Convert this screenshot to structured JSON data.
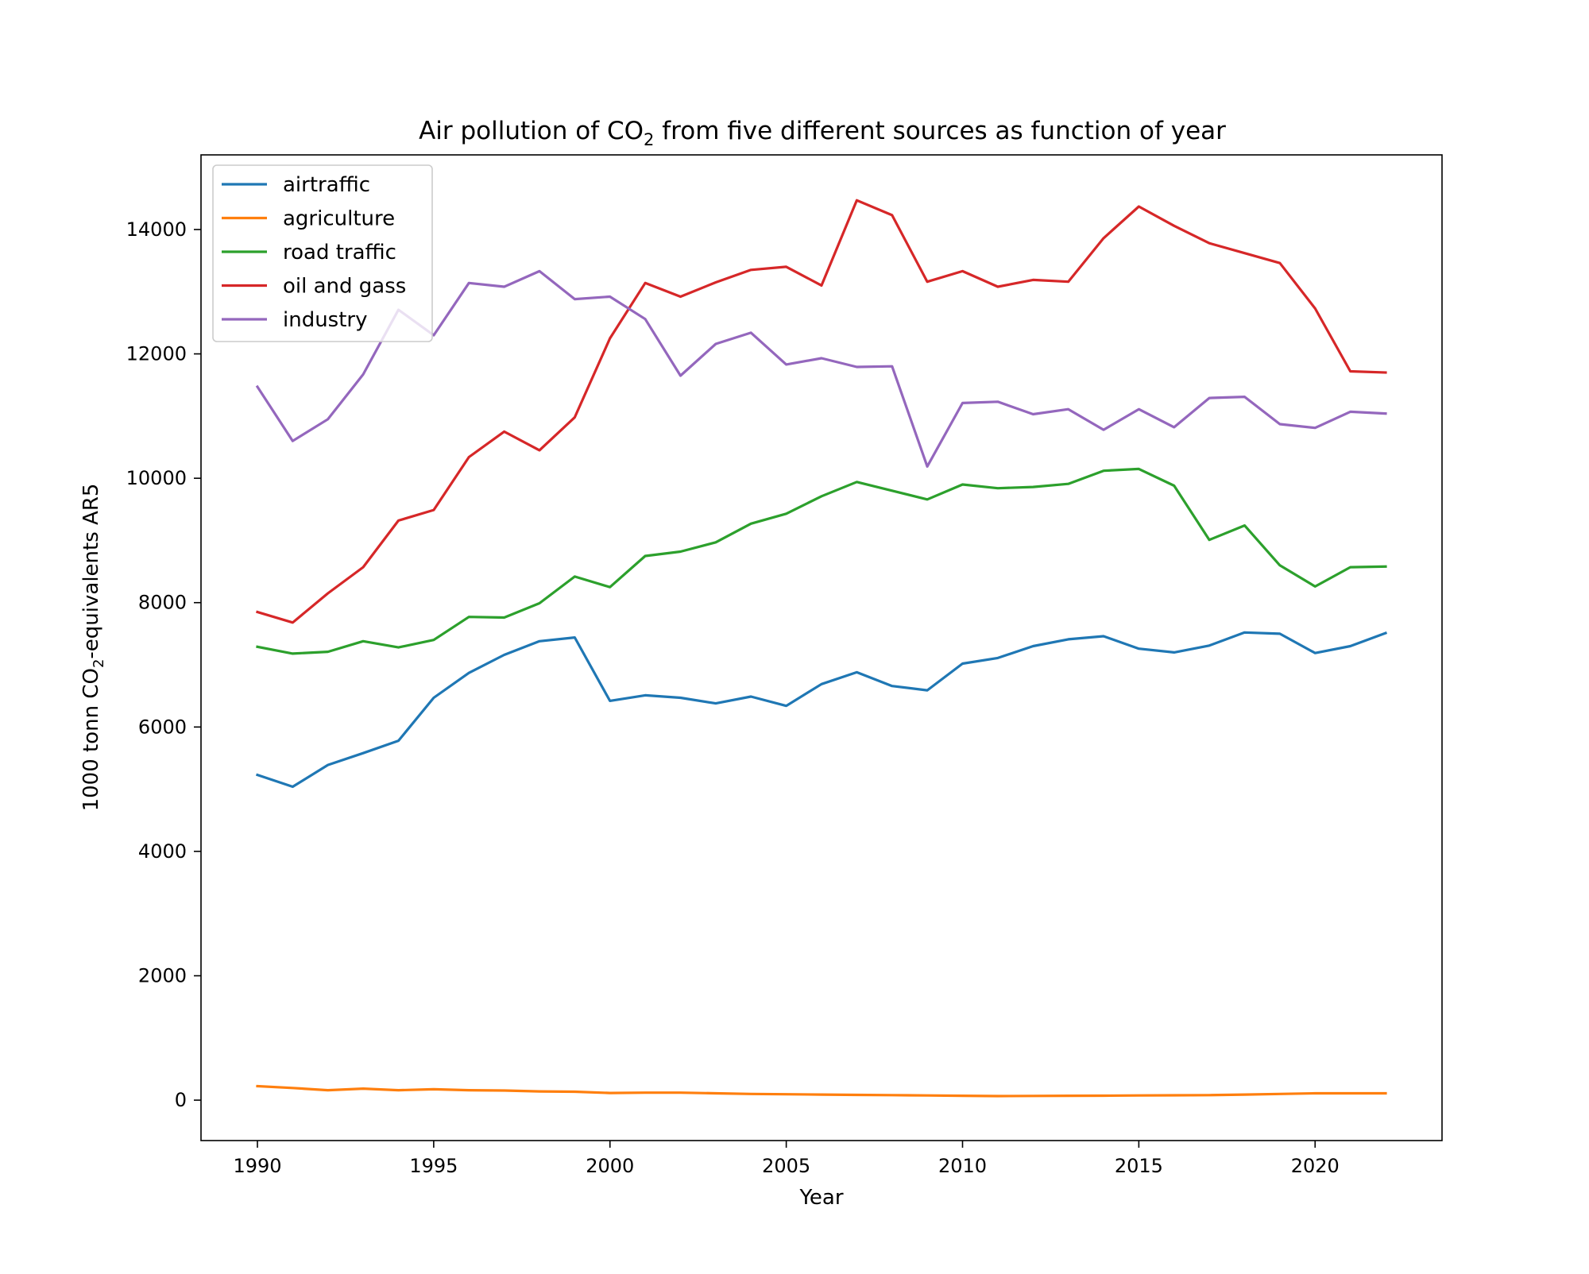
{
  "chart_data": {
    "type": "line",
    "title_main": "Air pollution of CO",
    "title_sub": "2",
    "title_rest": " from five different sources as function of year",
    "xlabel": "Year",
    "ylabel_main": "1000 tonn CO",
    "ylabel_sub": "2",
    "ylabel_rest": "-equivalents AR5",
    "xlim": [
      1988.4,
      2023.6
    ],
    "ylim": [
      -650,
      15200
    ],
    "xticks": [
      1990,
      1995,
      2000,
      2005,
      2010,
      2015,
      2020
    ],
    "yticks": [
      0,
      2000,
      4000,
      6000,
      8000,
      10000,
      12000,
      14000
    ],
    "grid": false,
    "legend_position": "top-left",
    "x": [
      1990,
      1991,
      1992,
      1993,
      1994,
      1995,
      1996,
      1997,
      1998,
      1999,
      2000,
      2001,
      2002,
      2003,
      2004,
      2005,
      2006,
      2007,
      2008,
      2009,
      2010,
      2011,
      2012,
      2013,
      2014,
      2015,
      2016,
      2017,
      2018,
      2019,
      2020,
      2021,
      2022
    ],
    "series": [
      {
        "name": "airtraffic",
        "color": "#1f77b4",
        "values": [
          5230,
          5040,
          5390,
          5580,
          5780,
          6470,
          6870,
          7160,
          7380,
          7440,
          6420,
          6510,
          6470,
          6380,
          6490,
          6340,
          6690,
          6880,
          6660,
          6590,
          7020,
          7110,
          7300,
          7410,
          7460,
          7260,
          7200,
          7310,
          7520,
          7500,
          7190,
          7300,
          7510
        ]
      },
      {
        "name": "agriculture",
        "color": "#ff7f0e",
        "values": [
          225,
          195,
          160,
          185,
          160,
          175,
          160,
          155,
          140,
          135,
          115,
          120,
          120,
          110,
          100,
          95,
          90,
          85,
          80,
          75,
          70,
          65,
          68,
          70,
          72,
          75,
          78,
          80,
          90,
          100,
          110,
          110,
          110
        ]
      },
      {
        "name": "road traffic",
        "color": "#2ca02c",
        "values": [
          7290,
          7180,
          7210,
          7380,
          7280,
          7400,
          7770,
          7760,
          7990,
          8420,
          8250,
          8750,
          8820,
          8970,
          9270,
          9430,
          9710,
          9940,
          9800,
          9660,
          9900,
          9840,
          9860,
          9910,
          10120,
          10150,
          9880,
          9010,
          9240,
          8600,
          8260,
          8570,
          8580
        ]
      },
      {
        "name": "oil and gass",
        "color": "#d62728",
        "values": [
          7850,
          7680,
          8150,
          8570,
          9320,
          9490,
          10340,
          10750,
          10450,
          10980,
          12250,
          13140,
          12920,
          13150,
          13350,
          13400,
          13100,
          14470,
          14230,
          13160,
          13330,
          13080,
          13190,
          13160,
          13860,
          14370,
          14060,
          13780,
          13620,
          13460,
          12730,
          11720,
          11700
        ]
      },
      {
        "name": "industry",
        "color": "#9467bd",
        "values": [
          11470,
          10600,
          10950,
          11670,
          12710,
          12300,
          13140,
          13080,
          13330,
          12880,
          12920,
          12560,
          11650,
          12160,
          12340,
          11830,
          11930,
          11790,
          11800,
          10190,
          11210,
          11230,
          11030,
          11110,
          10780,
          11110,
          10820,
          11290,
          11310,
          10870,
          10810,
          11070,
          11040
        ]
      }
    ]
  }
}
